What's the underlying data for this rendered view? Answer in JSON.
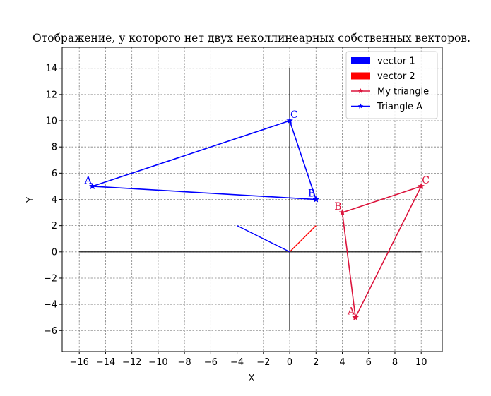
{
  "chart_data": {
    "type": "line",
    "title": "Отображение, у которого нет двух неколлинеарных собственных векторов.",
    "xlabel": "X",
    "ylabel": "Y",
    "xlim": [
      -17.3,
      11.6
    ],
    "ylim": [
      -7.6,
      15.6
    ],
    "xticks": [
      -16,
      -14,
      -12,
      -10,
      -8,
      -6,
      -4,
      -2,
      0,
      2,
      4,
      6,
      8,
      10
    ],
    "yticks": [
      -6,
      -4,
      -2,
      0,
      2,
      4,
      6,
      8,
      10,
      12,
      14
    ],
    "grid": true,
    "legend_position": "top-right",
    "axes_lines": {
      "horizontal": {
        "x": [
          -16,
          10
        ],
        "y": 0
      },
      "vertical": {
        "x": 0,
        "y": [
          -6,
          14
        ]
      }
    },
    "vectors": [
      {
        "name": "vector 1",
        "color": "#0000ff",
        "from": [
          0,
          0
        ],
        "to": [
          -4,
          2
        ]
      },
      {
        "name": "vector 2",
        "color": "#ff0000",
        "from": [
          0,
          0
        ],
        "to": [
          2,
          2
        ]
      }
    ],
    "series": [
      {
        "name": "My triangle",
        "color": "#dc143c",
        "marker": "star",
        "points": [
          {
            "label": "A",
            "x": 5,
            "y": -5
          },
          {
            "label": "B",
            "x": 4,
            "y": 3
          },
          {
            "label": "C",
            "x": 10,
            "y": 5
          },
          {
            "label": "",
            "x": 5,
            "y": -5
          }
        ]
      },
      {
        "name": "Triangle A",
        "color": "#0000ff",
        "marker": "star",
        "points": [
          {
            "label": "A",
            "x": -15,
            "y": 5
          },
          {
            "label": "B",
            "x": 2,
            "y": 4
          },
          {
            "label": "C",
            "x": 0,
            "y": 10
          },
          {
            "label": "",
            "x": -15,
            "y": 5
          }
        ]
      }
    ]
  }
}
